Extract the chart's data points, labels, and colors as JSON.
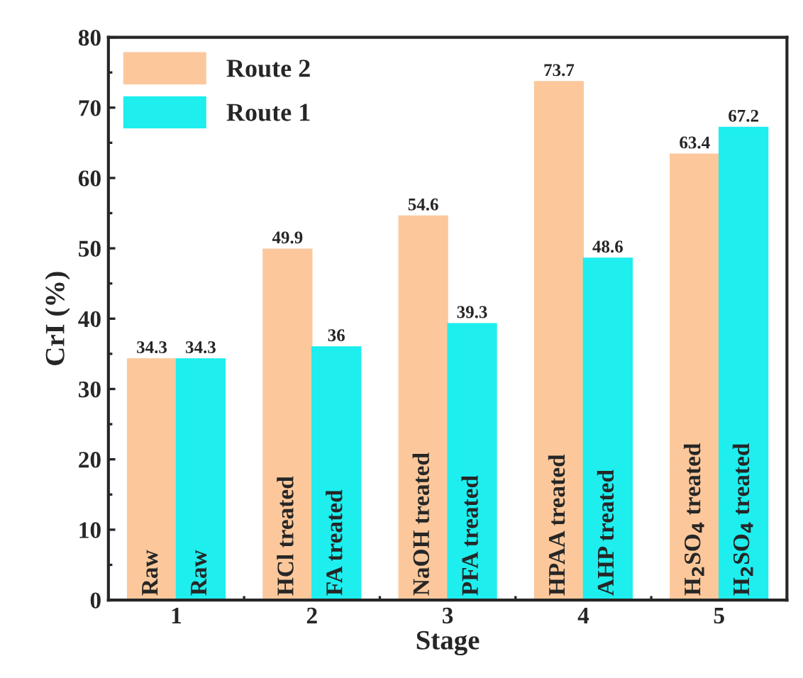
{
  "chart_data": {
    "type": "bar",
    "xlabel": "Stage",
    "ylabel": "CrI (%)",
    "categories": [
      "1",
      "2",
      "3",
      "4",
      "5"
    ],
    "series": [
      {
        "name": "Route 2",
        "color": "#fcc89b",
        "values": [
          34.3,
          49.9,
          54.6,
          73.7,
          63.4
        ]
      },
      {
        "name": "Route 1",
        "color": "#1eeeee",
        "values": [
          34.3,
          36,
          39.3,
          48.6,
          67.2
        ]
      }
    ],
    "ylim": [
      0,
      80
    ],
    "yticks": [
      0,
      10,
      20,
      30,
      40,
      50,
      60,
      70,
      80
    ],
    "data_labels": true,
    "legend": "top left",
    "grid": false,
    "annotations": [
      "Raw",
      "Raw",
      "HCl treated",
      "FA treated",
      "NaOH treated",
      "PFA treated",
      "HPAA treated",
      "AHP treated",
      "H$_{2}$SO$_{4}$ treated",
      "H$_{2}$SO$_{4}$ treated"
    ]
  }
}
